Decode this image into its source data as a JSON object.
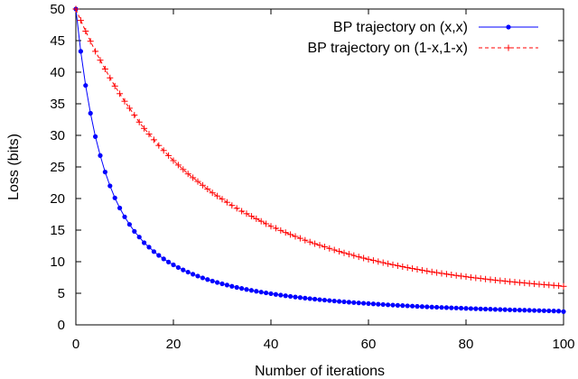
{
  "chart_data": {
    "type": "line",
    "title": "",
    "xlabel": "Number of iterations",
    "ylabel": "Loss (bits)",
    "xlim": [
      0,
      100
    ],
    "ylim": [
      0,
      50
    ],
    "xticks": [
      0,
      20,
      40,
      60,
      80,
      100
    ],
    "yticks": [
      0,
      5,
      10,
      15,
      20,
      25,
      30,
      35,
      40,
      45,
      50
    ],
    "grid": false,
    "legend_position": "top-right",
    "series": [
      {
        "name": "BP trajectory on (x,x)",
        "color": "#0000ff",
        "marker": "dot",
        "line_style": "solid",
        "x": [
          0,
          1,
          2,
          3,
          4,
          5,
          6,
          7,
          8,
          9,
          10,
          11,
          12,
          13,
          14,
          15,
          16,
          17,
          18,
          19,
          20,
          21,
          22,
          23,
          24,
          25,
          26,
          27,
          28,
          29,
          30,
          31,
          32,
          33,
          34,
          35,
          36,
          37,
          38,
          39,
          40,
          41,
          42,
          43,
          44,
          45,
          46,
          47,
          48,
          49,
          50,
          51,
          52,
          53,
          54,
          55,
          56,
          57,
          58,
          59,
          60,
          61,
          62,
          63,
          64,
          65,
          66,
          67,
          68,
          69,
          70,
          71,
          72,
          73,
          74,
          75,
          76,
          77,
          78,
          79,
          80,
          81,
          82,
          83,
          84,
          85,
          86,
          87,
          88,
          89,
          90,
          91,
          92,
          93,
          94,
          95,
          96,
          97,
          98,
          99,
          100
        ],
        "values": [
          50.0,
          43.3,
          37.9,
          33.5,
          29.8,
          26.8,
          24.2,
          22.0,
          20.1,
          18.5,
          17.1,
          15.9,
          14.8,
          13.9,
          13.0,
          12.3,
          11.6,
          11.0,
          10.45,
          9.95,
          9.5,
          9.08,
          8.7,
          8.35,
          8.02,
          7.72,
          7.44,
          7.18,
          6.94,
          6.71,
          6.5,
          6.3,
          6.11,
          5.93,
          5.77,
          5.61,
          5.46,
          5.32,
          5.19,
          5.06,
          4.94,
          4.82,
          4.71,
          4.61,
          4.51,
          4.41,
          4.32,
          4.23,
          4.15,
          4.07,
          3.99,
          3.92,
          3.85,
          3.78,
          3.71,
          3.65,
          3.59,
          3.53,
          3.47,
          3.42,
          3.37,
          3.32,
          3.27,
          3.22,
          3.17,
          3.13,
          3.09,
          3.05,
          3.01,
          2.97,
          2.93,
          2.89,
          2.86,
          2.82,
          2.79,
          2.76,
          2.73,
          2.7,
          2.67,
          2.64,
          2.61,
          2.58,
          2.55,
          2.53,
          2.5,
          2.48,
          2.45,
          2.43,
          2.41,
          2.38,
          2.36,
          2.34,
          2.32,
          2.3,
          2.28,
          2.26,
          2.24,
          2.22,
          2.2,
          2.18,
          2.1
        ]
      },
      {
        "name": "BP trajectory on (1-x,1-x)",
        "color": "#ff0000",
        "marker": "plus",
        "line_style": "dashed",
        "x": [
          0,
          1,
          2,
          3,
          4,
          5,
          6,
          7,
          8,
          9,
          10,
          11,
          12,
          13,
          14,
          15,
          16,
          17,
          18,
          19,
          20,
          21,
          22,
          23,
          24,
          25,
          26,
          27,
          28,
          29,
          30,
          31,
          32,
          33,
          34,
          35,
          36,
          37,
          38,
          39,
          40,
          41,
          42,
          43,
          44,
          45,
          46,
          47,
          48,
          49,
          50,
          51,
          52,
          53,
          54,
          55,
          56,
          57,
          58,
          59,
          60,
          61,
          62,
          63,
          64,
          65,
          66,
          67,
          68,
          69,
          70,
          71,
          72,
          73,
          74,
          75,
          76,
          77,
          78,
          79,
          80,
          81,
          82,
          83,
          84,
          85,
          86,
          87,
          88,
          89,
          90,
          91,
          92,
          93,
          94,
          95,
          96,
          97,
          98,
          99,
          100
        ],
        "values": [
          50.0,
          48.2,
          46.5,
          44.9,
          43.3,
          41.9,
          40.5,
          39.1,
          37.8,
          36.6,
          35.4,
          34.3,
          33.2,
          32.1,
          31.1,
          30.2,
          29.3,
          28.4,
          27.6,
          26.8,
          26.0,
          25.3,
          24.6,
          23.9,
          23.3,
          22.7,
          22.1,
          21.5,
          20.9,
          20.4,
          19.9,
          19.4,
          18.9,
          18.45,
          18.0,
          17.6,
          17.2,
          16.8,
          16.4,
          16.0,
          15.6,
          15.3,
          14.95,
          14.62,
          14.3,
          14.0,
          13.7,
          13.4,
          13.12,
          12.85,
          12.6,
          12.35,
          12.1,
          11.86,
          11.63,
          11.4,
          11.19,
          10.98,
          10.77,
          10.57,
          10.38,
          10.2,
          10.02,
          9.85,
          9.68,
          9.52,
          9.36,
          9.21,
          9.06,
          8.92,
          8.78,
          8.65,
          8.52,
          8.39,
          8.27,
          8.15,
          8.04,
          7.93,
          7.82,
          7.72,
          7.62,
          7.52,
          7.43,
          7.34,
          7.25,
          7.16,
          7.08,
          7.0,
          6.92,
          6.84,
          6.77,
          6.7,
          6.63,
          6.56,
          6.49,
          6.43,
          6.37,
          6.31,
          6.25,
          6.19,
          6.1
        ]
      }
    ]
  }
}
